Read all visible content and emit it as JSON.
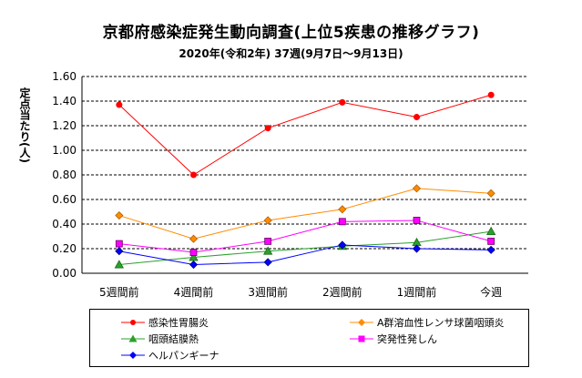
{
  "title": "京都府感染症発生動向調査(上位5疾患の推移グラフ)",
  "subtitle": "2020年(令和2年) 37週(9月7日～9月13日)",
  "chart_data": {
    "type": "line",
    "title": "京都府感染症発生動向調査(上位5疾患の推移グラフ)",
    "subtitle": "2020年(令和2年) 37週(9月7日～9月13日)",
    "ylabel": "定点当たり(人)",
    "xlabel": "",
    "categories": [
      "5週間前",
      "4週間前",
      "3週間前",
      "2週間前",
      "1週間前",
      "今週"
    ],
    "ylim": [
      0,
      1.6
    ],
    "yticks": [
      "0.00",
      "0.20",
      "0.40",
      "0.60",
      "0.80",
      "1.00",
      "1.20",
      "1.40",
      "1.60"
    ],
    "grid": "horizontal-dashed",
    "legend_position": "bottom",
    "series": [
      {
        "name": "感染性胃腸炎",
        "color": "#ff0000",
        "marker": "circle",
        "values": [
          1.37,
          0.8,
          1.18,
          1.39,
          1.27,
          1.45
        ]
      },
      {
        "name": "A群溶血性レンサ球菌咽頭炎",
        "color": "#ff8c00",
        "marker": "diamond",
        "values": [
          0.47,
          0.28,
          0.43,
          0.52,
          0.69,
          0.65
        ]
      },
      {
        "name": "咽頭結膜熱",
        "color": "#2ca02c",
        "marker": "triangle",
        "values": [
          0.07,
          0.13,
          0.18,
          0.22,
          0.25,
          0.34
        ]
      },
      {
        "name": "突発性発しん",
        "color": "#ff00ff",
        "marker": "square",
        "values": [
          0.24,
          0.17,
          0.26,
          0.42,
          0.43,
          0.26
        ]
      },
      {
        "name": "ヘルパンギーナ",
        "color": "#0000ff",
        "marker": "diamond",
        "values": [
          0.18,
          0.07,
          0.09,
          0.23,
          0.2,
          0.19
        ]
      }
    ]
  }
}
